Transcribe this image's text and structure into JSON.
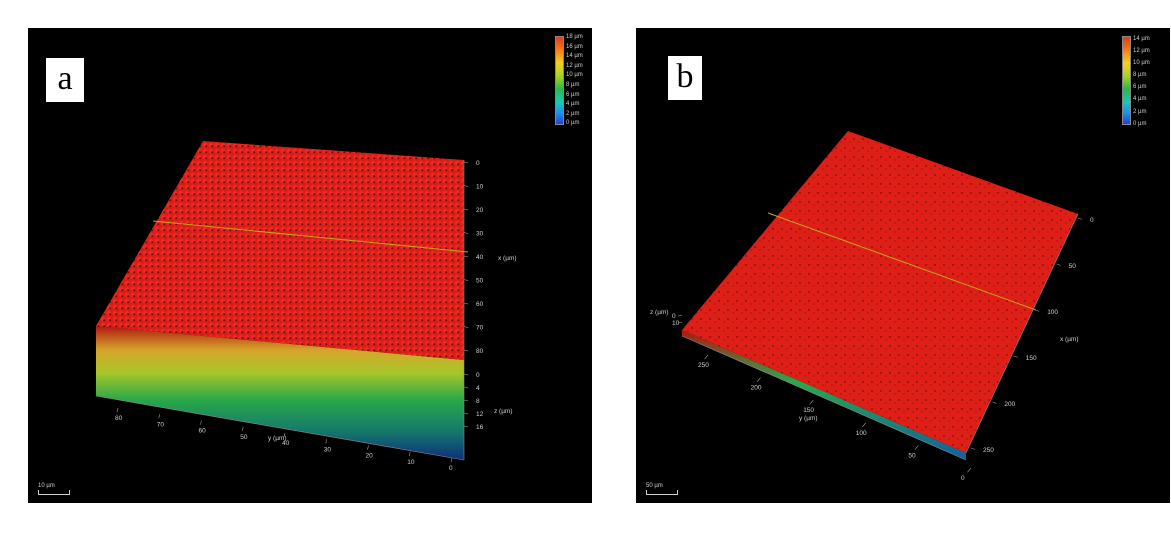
{
  "panels": [
    {
      "label": "a",
      "legend": [
        "18 µm",
        "16 µm",
        "14 µm",
        "12 µm",
        "10 µm",
        "8 µm",
        "6 µm",
        "4 µm",
        "2 µm",
        "0 µm"
      ],
      "x_ticks": [
        "0",
        "10",
        "20",
        "30",
        "40",
        "50",
        "60",
        "70",
        "80"
      ],
      "x_label": "x (µm)",
      "z_ticks": [
        "0",
        "4",
        "8",
        "12",
        "16"
      ],
      "z_label": "z (µm)",
      "y_ticks": [
        "80",
        "70",
        "60",
        "50",
        "40",
        "30",
        "20",
        "10",
        "0"
      ],
      "y_label": "y (µm)",
      "scale": "10 µm"
    },
    {
      "label": "b",
      "legend": [
        "14 µm",
        "12 µm",
        "10 µm",
        "8 µm",
        "6 µm",
        "4 µm",
        "2 µm",
        "0 µm"
      ],
      "x_ticks": [
        "0",
        "50",
        "100",
        "150",
        "200",
        "250"
      ],
      "x_label": "x (µm)",
      "z_ticks": [
        "0",
        "10"
      ],
      "z_label": "z (µm)",
      "y_ticks": [
        "250",
        "200",
        "150",
        "100",
        "50",
        "0"
      ],
      "y_label": "y (µm)",
      "scale": "50 µm"
    }
  ]
}
